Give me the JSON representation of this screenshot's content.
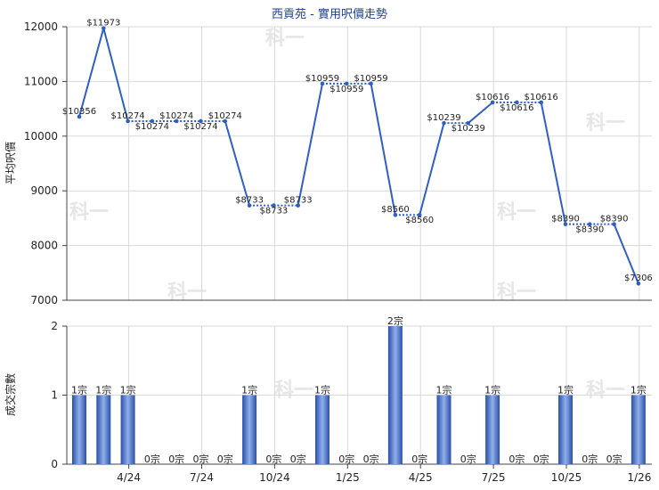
{
  "chart_data": [
    {
      "type": "line",
      "title": "西貢苑 - 實用呎價走勢",
      "ylabel": "平均呎價",
      "ylim": [
        7000,
        12000
      ],
      "yticks": [
        7000,
        8000,
        9000,
        10000,
        11000,
        12000
      ],
      "grid": true,
      "values": [
        10356,
        11973,
        10274,
        10274,
        10274,
        10274,
        10274,
        8733,
        8733,
        8733,
        10959,
        10959,
        10959,
        8560,
        8560,
        10239,
        10239,
        10616,
        10616,
        10616,
        8390,
        8390,
        8390,
        7306
      ],
      "value_labels": [
        "$10356",
        "$11973",
        "$10274",
        "$10274",
        "$10274",
        "$10274",
        "$10274",
        "$8733",
        "$8733",
        "$8733",
        "$10959",
        "$10959",
        "$10959",
        "$8560",
        "$8560",
        "$10239",
        "$10239",
        "$10616",
        "$10616",
        "$10616",
        "$8390",
        "$8390",
        "$8390",
        "$7306"
      ]
    },
    {
      "type": "bar",
      "ylabel": "成交宗數",
      "ylim": [
        0,
        2
      ],
      "yticks": [
        0,
        1,
        2
      ],
      "grid": true,
      "values": [
        1,
        1,
        1,
        0,
        0,
        0,
        0,
        1,
        0,
        0,
        1,
        0,
        0,
        2,
        0,
        1,
        0,
        1,
        0,
        0,
        1,
        0,
        0,
        1
      ],
      "value_labels": [
        "1宗",
        "1宗",
        "1宗",
        "0宗",
        "0宗",
        "0宗",
        "0宗",
        "1宗",
        "0宗",
        "0宗",
        "1宗",
        "0宗",
        "0宗",
        "2宗",
        "0宗",
        "1宗",
        "0宗",
        "1宗",
        "0宗",
        "0宗",
        "1宗",
        "0宗",
        "0宗",
        "1宗"
      ],
      "x_tick_labels": [
        "4/24",
        "7/24",
        "10/24",
        "1/25",
        "4/25",
        "7/25",
        "10/25",
        "1/26"
      ],
      "x_tick_index": [
        2,
        5,
        8,
        11,
        14,
        17,
        20,
        23
      ]
    }
  ],
  "colors": {
    "line": "#2f5fc4",
    "bar_dark": "#2a4fa8",
    "bar_light": "#8fb0ea",
    "grid": "#d9d9d9",
    "axis": "#444444"
  },
  "watermark": "科一"
}
